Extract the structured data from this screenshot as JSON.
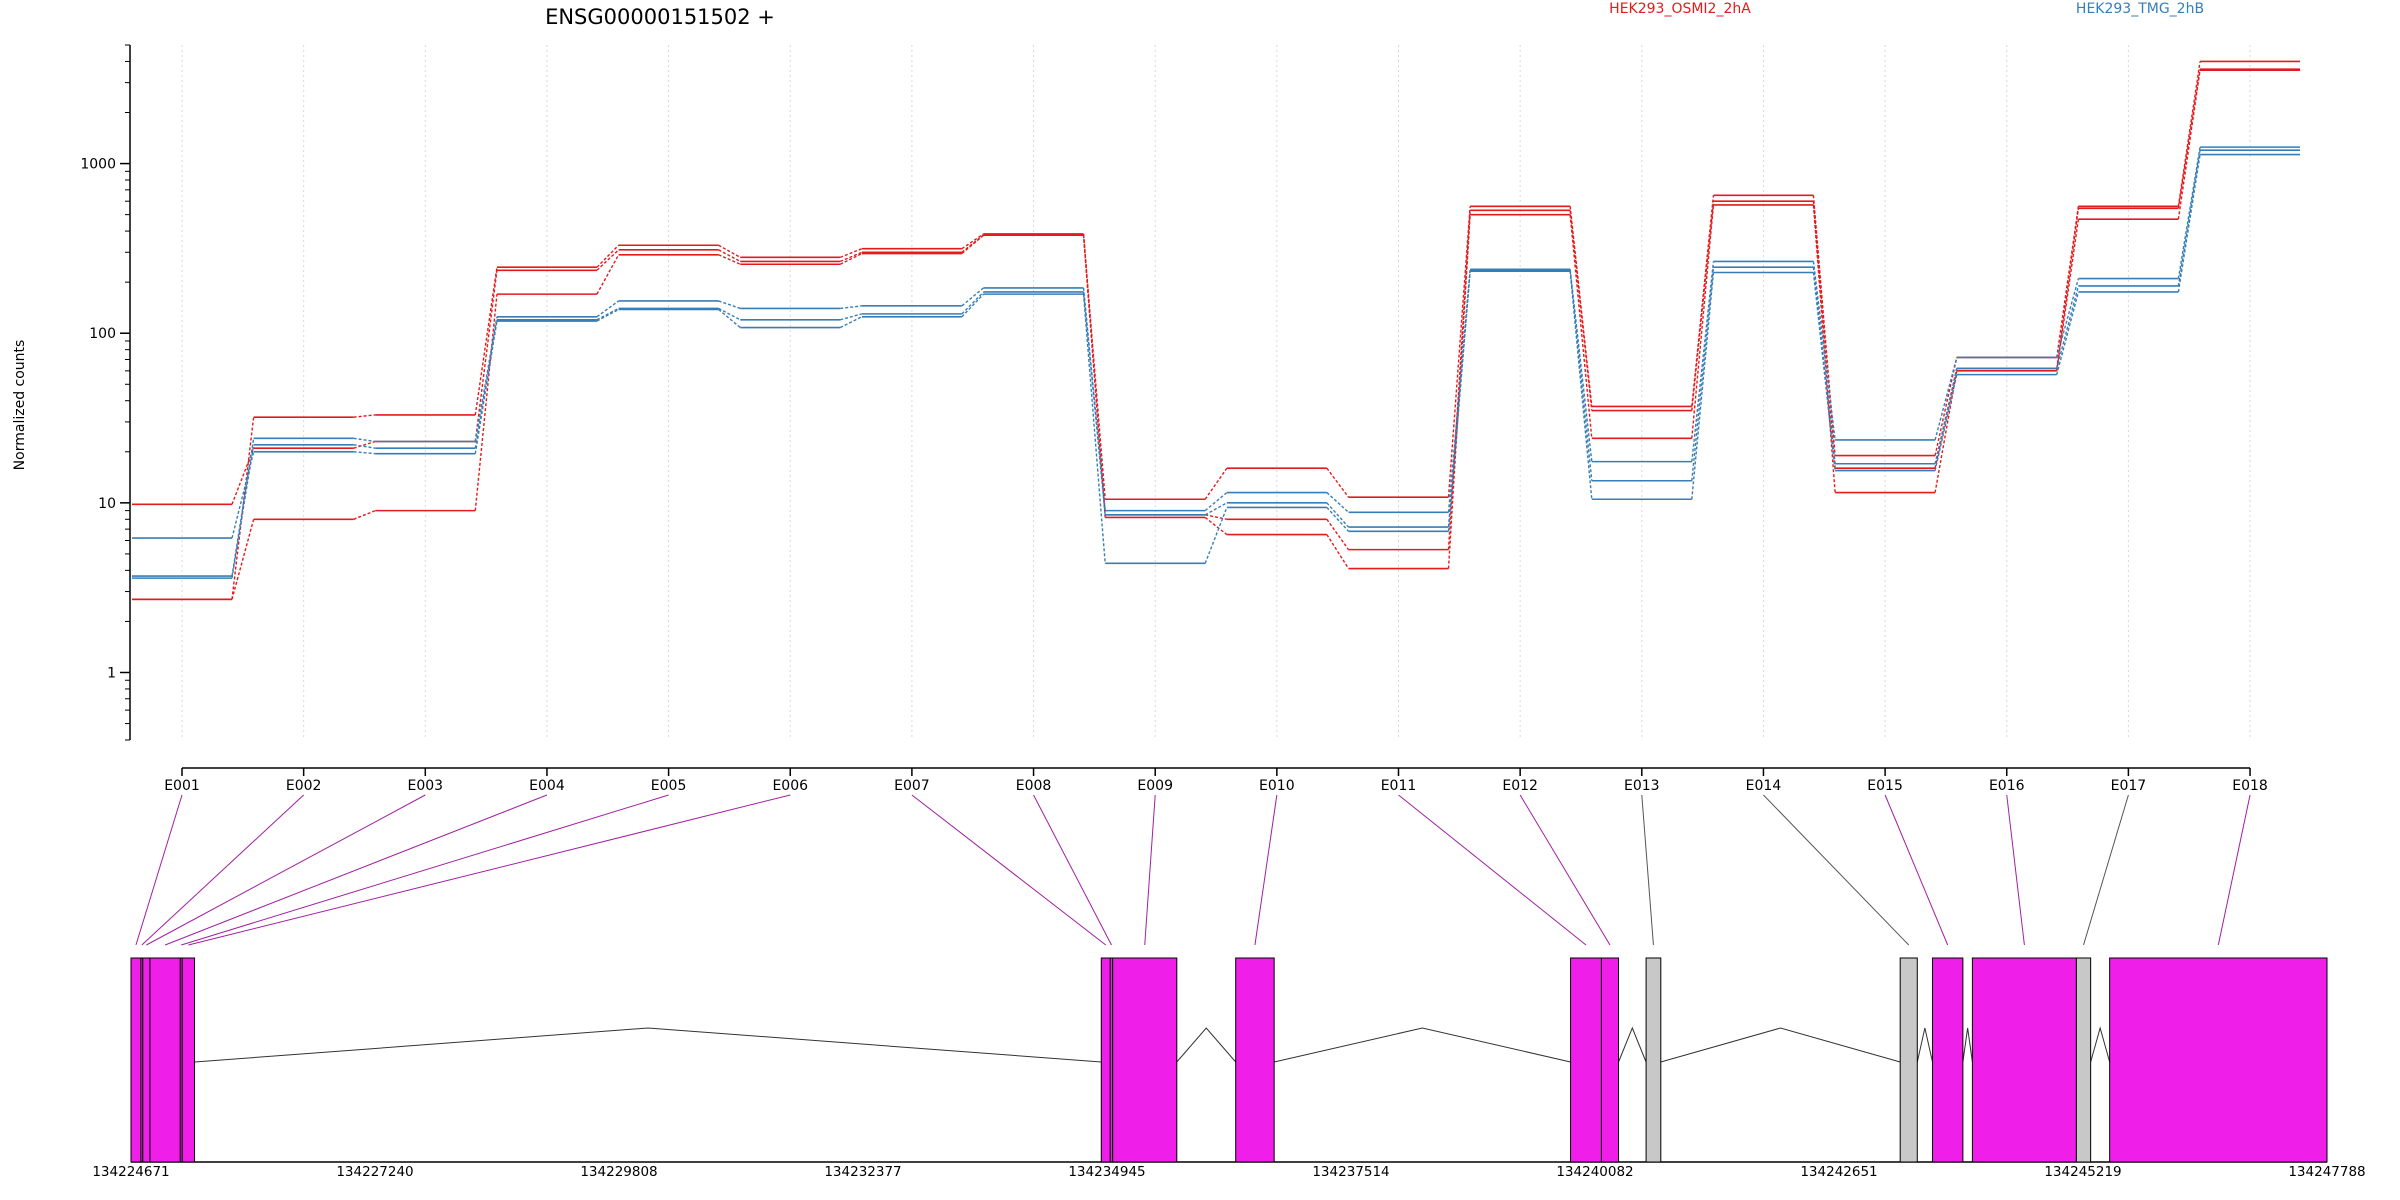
{
  "chart_data": {
    "type": "line",
    "title": "ENSG00000151502 +",
    "ylabel": "Normalized counts",
    "yscale": "log",
    "ylim": [
      0.4,
      5000
    ],
    "yticks": [
      1,
      10,
      100,
      1000
    ],
    "ytick_labels": [
      "1",
      "10",
      "100",
      "1000"
    ],
    "grid": "vertical dotted lines at each exon",
    "legend_position": "top",
    "categories": [
      "E001",
      "E002",
      "E003",
      "E004",
      "E005",
      "E006",
      "E007",
      "E008",
      "E009",
      "E010",
      "E011",
      "E012",
      "E013",
      "E014",
      "E015",
      "E016",
      "E017",
      "E018"
    ],
    "colors": {
      "HEK293_OSMI2_2hA": "#e41a1c",
      "HEK293_TMG_2hB": "#377eb8",
      "exon_fill": "#f01ee9",
      "exon_gray": "#c8c8c8",
      "connector": "#a020a0"
    },
    "series": [
      {
        "name": "HEK293_OSMI2_2hA",
        "color": "#e41a1c",
        "values": [
          2.7,
          32,
          33,
          245,
          330,
          280,
          315,
          385,
          10.5,
          16,
          10.8,
          560,
          37,
          650,
          19,
          72,
          560,
          4000
        ]
      },
      {
        "name": "HEK293_OSMI2_2hA",
        "color": "#e41a1c",
        "values": [
          9.8,
          21,
          23,
          235,
          310,
          265,
          300,
          380,
          8.5,
          8,
          5.3,
          530,
          35,
          600,
          16,
          62,
          545,
          3600
        ]
      },
      {
        "name": "HEK293_OSMI2_2hA",
        "color": "#e41a1c",
        "values": [
          2.7,
          8,
          9,
          170,
          290,
          255,
          295,
          378,
          8.2,
          6.5,
          4.1,
          500,
          24,
          570,
          11.5,
          60,
          470,
          3550
        ]
      },
      {
        "name": "HEK293_TMG_2hB",
        "color": "#377eb8",
        "values": [
          3.7,
          24,
          23,
          125,
          155,
          140,
          145,
          185,
          9,
          11.5,
          8.8,
          238,
          17.5,
          265,
          23.5,
          72,
          210,
          1250
        ]
      },
      {
        "name": "HEK293_TMG_2hB",
        "color": "#377eb8",
        "values": [
          3.6,
          22,
          21,
          120,
          140,
          120,
          130,
          175,
          8.5,
          10,
          7.2,
          235,
          13.5,
          245,
          17,
          62,
          190,
          1200
        ]
      },
      {
        "name": "HEK293_TMG_2hB",
        "color": "#377eb8",
        "values": [
          6.2,
          20,
          19.5,
          118,
          138,
          108,
          125,
          170,
          4.4,
          9.4,
          6.8,
          232,
          10.5,
          228,
          15.5,
          57,
          175,
          1130
        ]
      }
    ],
    "gene_model": {
      "coordinate_range": [
        134224671,
        134247788
      ],
      "coordinate_ticks": [
        "134224671",
        "134227240",
        "134229808",
        "134232377",
        "134234945",
        "134237514",
        "134240082",
        "134242651",
        "134245219",
        "134247788"
      ],
      "exons": [
        {
          "id": "E001",
          "start": 134224671,
          "end": 134224775,
          "color": "#f01ee9"
        },
        {
          "id": "E002",
          "start": 134224775,
          "end": 134224795,
          "color": "#f01ee9"
        },
        {
          "id": "E003",
          "start": 134224795,
          "end": 134224870,
          "color": "#f01ee9"
        },
        {
          "id": "E004",
          "start": 134224870,
          "end": 134225190,
          "color": "#f01ee9"
        },
        {
          "id": "E005",
          "start": 134225190,
          "end": 134225210,
          "color": "#f01ee9"
        },
        {
          "id": "E006",
          "start": 134225210,
          "end": 134225340,
          "color": "#f01ee9"
        },
        {
          "id": "E007",
          "start": 134234885,
          "end": 134234980,
          "color": "#f01ee9"
        },
        {
          "id": "E008",
          "start": 134234980,
          "end": 134235005,
          "color": "#f01ee9"
        },
        {
          "id": "E009",
          "start": 134235005,
          "end": 134235680,
          "color": "#f01ee9"
        },
        {
          "id": "E010",
          "start": 134236300,
          "end": 134236705,
          "color": "#f01ee9"
        },
        {
          "id": "E011",
          "start": 134239825,
          "end": 134240150,
          "color": "#f01ee9"
        },
        {
          "id": "E012",
          "start": 134240150,
          "end": 134240330,
          "color": "#f01ee9"
        },
        {
          "id": "E013",
          "start": 134240620,
          "end": 134240775,
          "color": "#c8c8c8"
        },
        {
          "id": "E014",
          "start": 134243295,
          "end": 134243475,
          "color": "#c8c8c8"
        },
        {
          "id": "E015",
          "start": 134243635,
          "end": 134243955,
          "color": "#f01ee9"
        },
        {
          "id": "E016",
          "start": 134244055,
          "end": 134245150,
          "color": "#f01ee9"
        },
        {
          "id": "E017",
          "start": 134245150,
          "end": 134245300,
          "color": "#c8c8c8"
        },
        {
          "id": "E018",
          "start": 134245500,
          "end": 134247788,
          "color": "#f01ee9"
        }
      ],
      "introns": [
        [
          134225340,
          134234885
        ],
        [
          134235680,
          134236300
        ],
        [
          134236705,
          134239825
        ],
        [
          134240330,
          134240620
        ],
        [
          134240775,
          134243295
        ],
        [
          134243475,
          134243635
        ],
        [
          134243955,
          134244055
        ],
        [
          134245300,
          134245500
        ]
      ]
    }
  }
}
